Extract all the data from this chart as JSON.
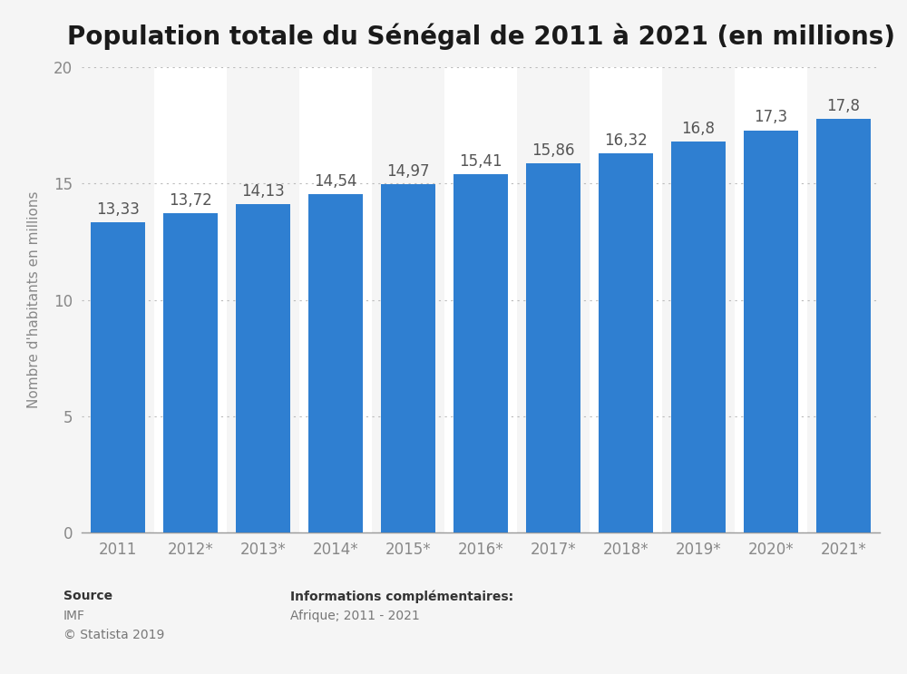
{
  "title": "Population totale du Sénégal de 2011 à 2021 (en millions)",
  "categories": [
    "2011",
    "2012*",
    "2013*",
    "2014*",
    "2015*",
    "2016*",
    "2017*",
    "2018*",
    "2019*",
    "2020*",
    "2021*"
  ],
  "values": [
    13.33,
    13.72,
    14.13,
    14.54,
    14.97,
    15.41,
    15.86,
    16.32,
    16.8,
    17.3,
    17.8
  ],
  "value_labels": [
    "13,33",
    "13,72",
    "14,13",
    "14,54",
    "14,97",
    "15,41",
    "15,86",
    "16,32",
    "16,8",
    "17,3",
    "17,8"
  ],
  "bar_color": "#2F7FD1",
  "ylabel": "Nombre d'habitants en millions",
  "ylim": [
    0,
    20
  ],
  "yticks": [
    0,
    5,
    10,
    15,
    20
  ],
  "bg_color": "#f5f5f5",
  "col_light": "#f5f5f5",
  "col_white": "#ffffff",
  "title_fontsize": 20,
  "label_fontsize": 11,
  "tick_fontsize": 12,
  "value_fontsize": 12,
  "source_label": "Source",
  "source_text1": "IMF",
  "source_text2": "© Statista 2019",
  "info_title": "Informations complémentaires:",
  "info_text": "Afrique; 2011 - 2021"
}
